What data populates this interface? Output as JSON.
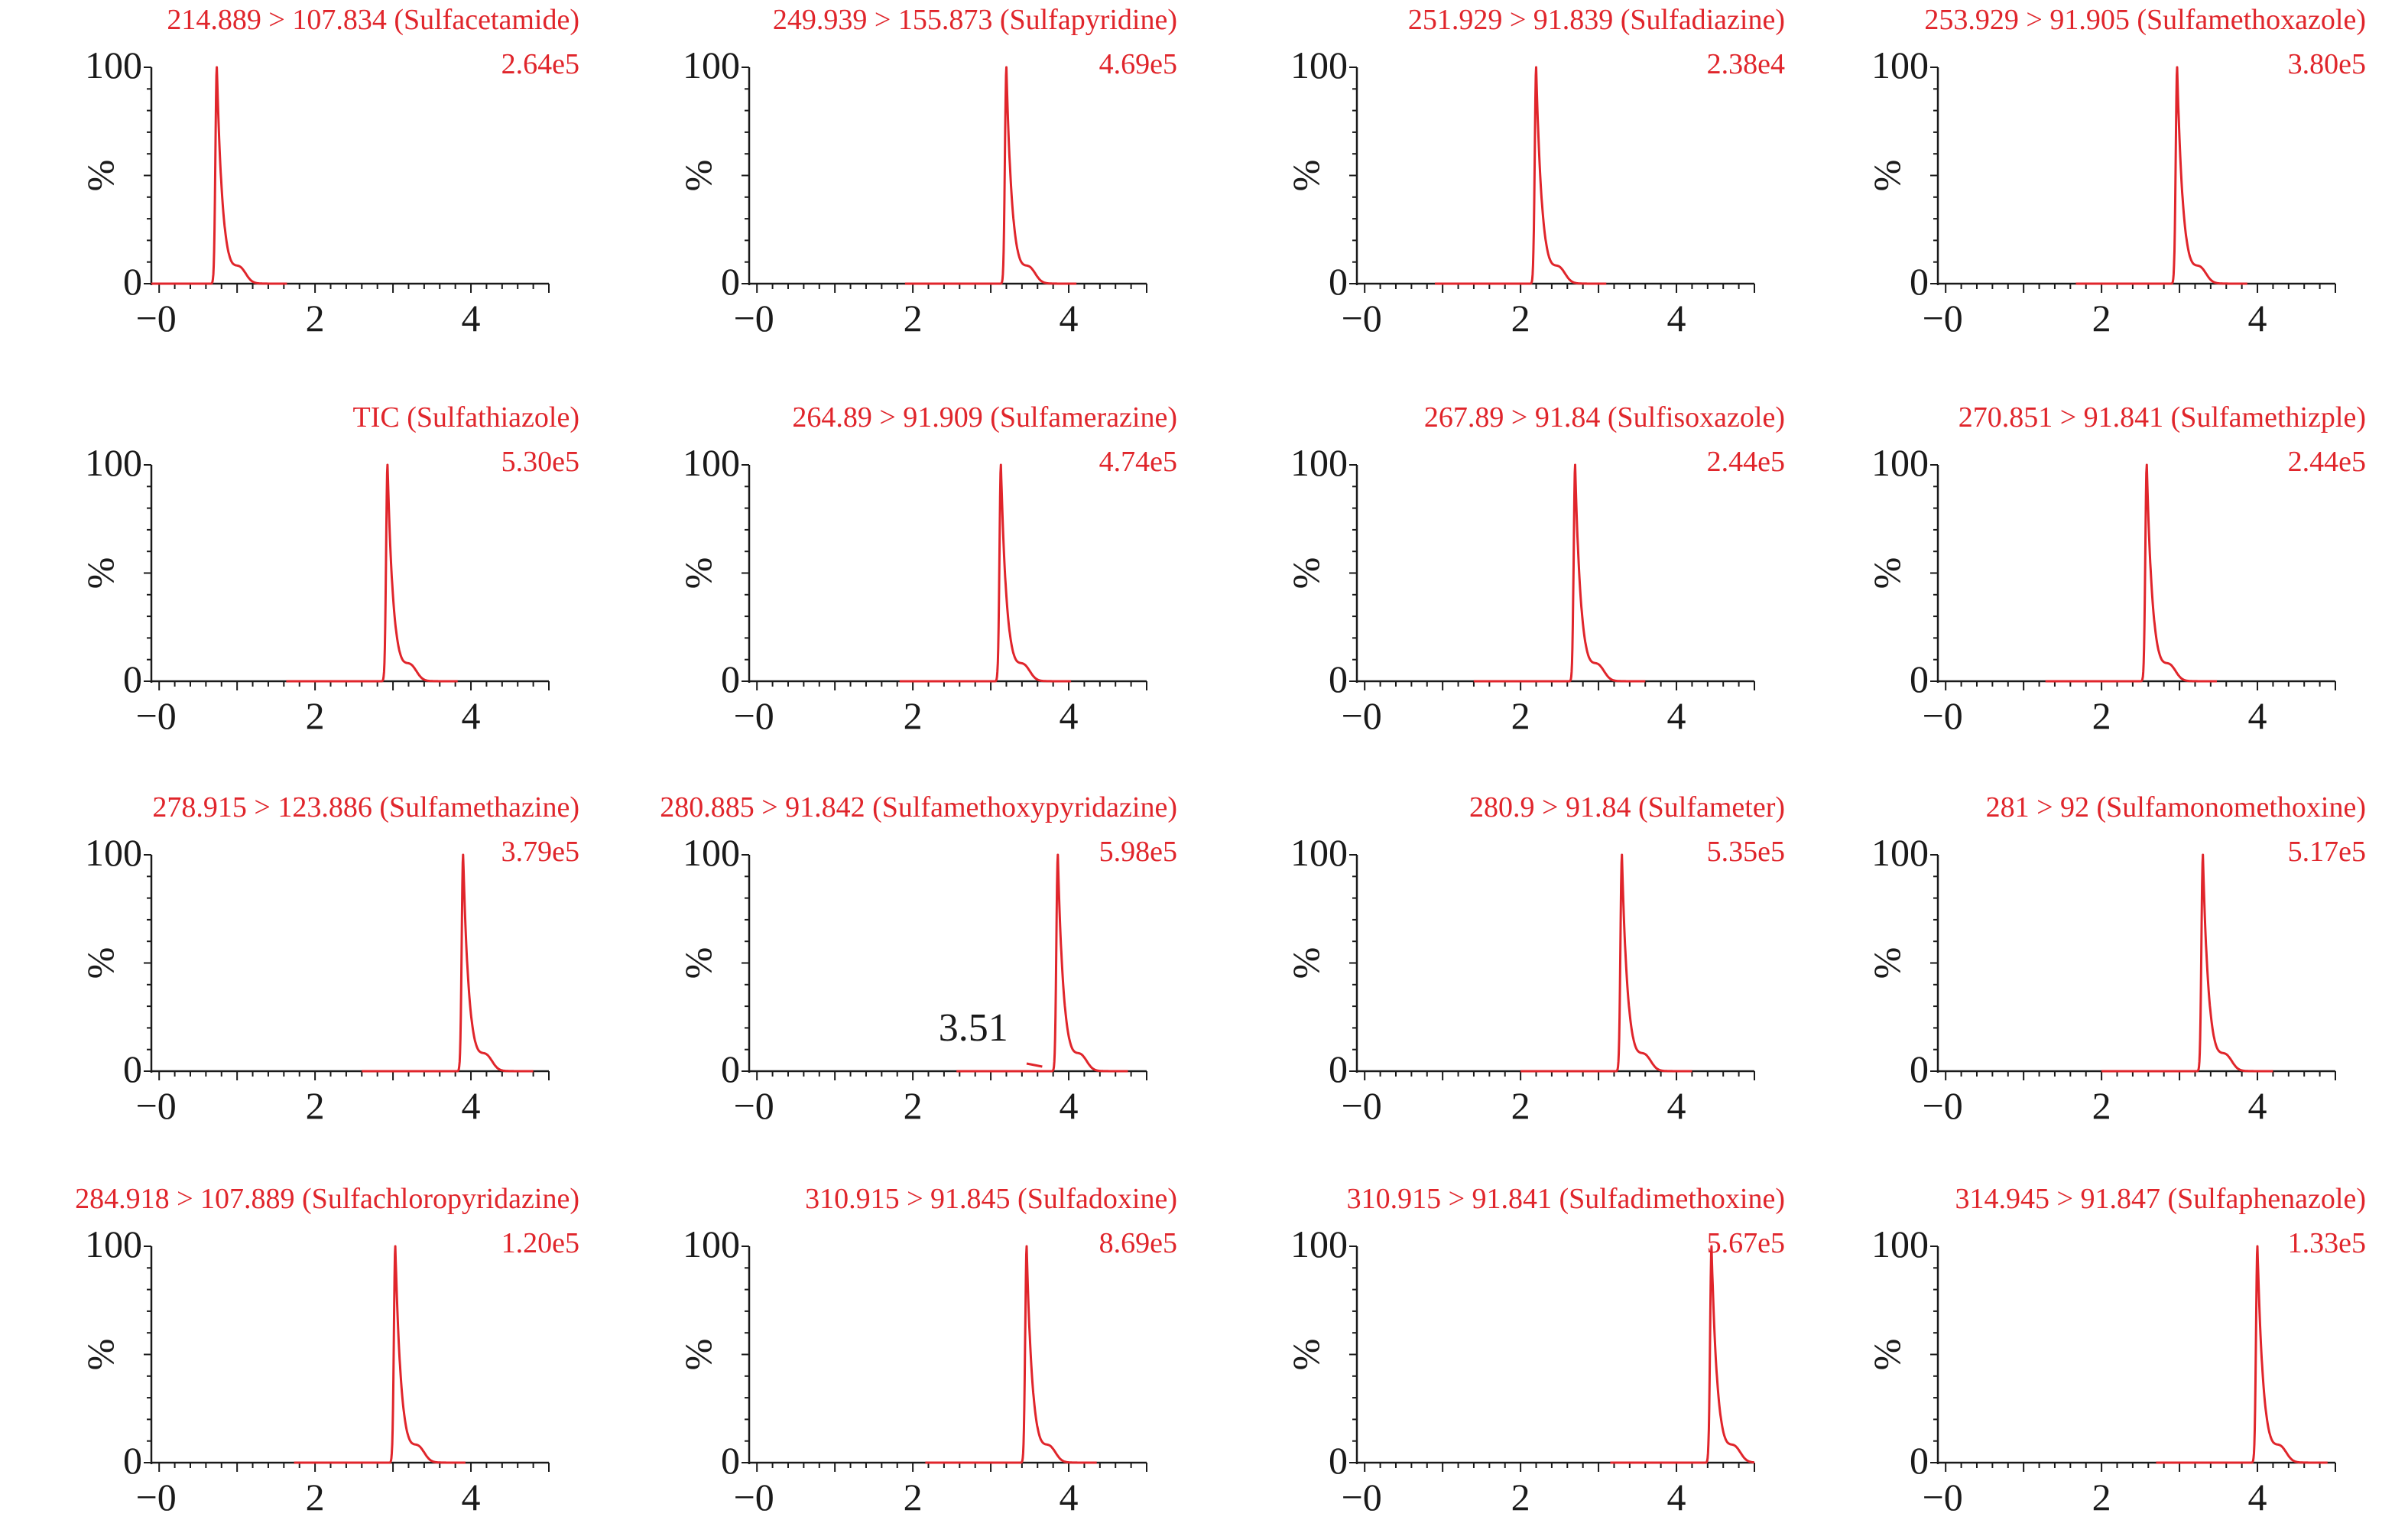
{
  "colors": {
    "trace": "#e0252b",
    "label": "#e0252b",
    "axis": "#1a1a1a"
  },
  "chart_data": [
    {
      "type": "line",
      "title": "214.889 > 107.834 (Sulfacetamide)",
      "intensity": "2.64e5",
      "peak": 0.74,
      "xlim": [
        -0.1,
        5.0
      ],
      "ylim": [
        0,
        100
      ],
      "yticks": [
        "100",
        "0"
      ],
      "xticks": [
        "−0",
        "2",
        "4"
      ],
      "ylabel": "%"
    },
    {
      "type": "line",
      "title": "249.939 > 155.873 (Sulfapyridine)",
      "intensity": "4.69e5",
      "peak": 3.2,
      "xlim": [
        -0.1,
        5.0
      ],
      "ylim": [
        0,
        100
      ],
      "yticks": [
        "100",
        "0"
      ],
      "xticks": [
        "−0",
        "2",
        "4"
      ],
      "ylabel": "%"
    },
    {
      "type": "line",
      "title": "251.929 > 91.839 (Sulfadiazine)",
      "intensity": "2.38e4",
      "peak": 2.2,
      "xlim": [
        -0.1,
        5.0
      ],
      "ylim": [
        0,
        100
      ],
      "yticks": [
        "100",
        "0"
      ],
      "xticks": [
        "−0",
        "2",
        "4"
      ],
      "ylabel": "%"
    },
    {
      "type": "line",
      "title": "253.929 > 91.905 (Sulfamethoxazole)",
      "intensity": "3.80e5",
      "peak": 2.97,
      "xlim": [
        -0.1,
        5.0
      ],
      "ylim": [
        0,
        100
      ],
      "yticks": [
        "100",
        "0"
      ],
      "xticks": [
        "−0",
        "2",
        "4"
      ],
      "ylabel": "%"
    },
    {
      "type": "line",
      "title": "TIC (Sulfathiazole)",
      "intensity": "5.30e5",
      "peak": 2.93,
      "xlim": [
        -0.1,
        5.0
      ],
      "ylim": [
        0,
        100
      ],
      "yticks": [
        "100",
        "0"
      ],
      "xticks": [
        "−0",
        "2",
        "4"
      ],
      "ylabel": "%"
    },
    {
      "type": "line",
      "title": "264.89 > 91.909 (Sulfamerazine)",
      "intensity": "4.74e5",
      "peak": 3.13,
      "xlim": [
        -0.1,
        5.0
      ],
      "ylim": [
        0,
        100
      ],
      "yticks": [
        "100",
        "0"
      ],
      "xticks": [
        "−0",
        "2",
        "4"
      ],
      "ylabel": "%"
    },
    {
      "type": "line",
      "title": "267.89 > 91.84 (Sulfisoxazole)",
      "intensity": "2.44e5",
      "peak": 2.7,
      "xlim": [
        -0.1,
        5.0
      ],
      "ylim": [
        0,
        100
      ],
      "yticks": [
        "100",
        "0"
      ],
      "xticks": [
        "−0",
        "2",
        "4"
      ],
      "ylabel": "%"
    },
    {
      "type": "line",
      "title": "270.851 > 91.841 (Sulfamethizple)",
      "intensity": "2.44e5",
      "peak": 2.58,
      "xlim": [
        -0.1,
        5.0
      ],
      "ylim": [
        0,
        100
      ],
      "yticks": [
        "100",
        "0"
      ],
      "xticks": [
        "−0",
        "2",
        "4"
      ],
      "ylabel": "%"
    },
    {
      "type": "line",
      "title": "278.915 > 123.886  (Sulfamethazine)",
      "intensity": "3.79e5",
      "peak": 3.9,
      "xlim": [
        -0.1,
        5.0
      ],
      "ylim": [
        0,
        100
      ],
      "yticks": [
        "100",
        "0"
      ],
      "xticks": [
        "−0",
        "2",
        "4"
      ],
      "ylabel": "%"
    },
    {
      "type": "line",
      "title": "280.885 > 91.842 (Sulfamethoxypyridazine)",
      "intensity": "5.98e5",
      "peak": 3.86,
      "annotation": "3.51",
      "xlim": [
        -0.1,
        5.0
      ],
      "ylim": [
        0,
        100
      ],
      "yticks": [
        "100",
        "0"
      ],
      "xticks": [
        "−0",
        "2",
        "4"
      ],
      "ylabel": "%"
    },
    {
      "type": "line",
      "title": "280.9 > 91.84 (Sulfameter)",
      "intensity": "5.35e5",
      "peak": 3.3,
      "xlim": [
        -0.1,
        5.0
      ],
      "ylim": [
        0,
        100
      ],
      "yticks": [
        "100",
        "0"
      ],
      "xticks": [
        "−0",
        "2",
        "4"
      ],
      "ylabel": "%"
    },
    {
      "type": "line",
      "title": "281 > 92 (Sulfamonomethoxine)",
      "intensity": "5.17e5",
      "peak": 3.3,
      "xlim": [
        -0.1,
        5.0
      ],
      "ylim": [
        0,
        100
      ],
      "yticks": [
        "100",
        "0"
      ],
      "xticks": [
        "−0",
        "2",
        "4"
      ],
      "ylabel": "%"
    },
    {
      "type": "line",
      "title": "284.918 > 107.889  (Sulfachloropyridazine)",
      "intensity": "1.20e5",
      "peak": 3.03,
      "xlim": [
        -0.1,
        5.0
      ],
      "ylim": [
        0,
        100
      ],
      "yticks": [
        "100",
        "0"
      ],
      "xticks": [
        "−0",
        "2",
        "4"
      ],
      "ylabel": "%"
    },
    {
      "type": "line",
      "title": "310.915 > 91.845 (Sulfadoxine)",
      "intensity": "8.69e5",
      "peak": 3.46,
      "xlim": [
        -0.1,
        5.0
      ],
      "ylim": [
        0,
        100
      ],
      "yticks": [
        "100",
        "0"
      ],
      "xticks": [
        "−0",
        "2",
        "4"
      ],
      "ylabel": "%"
    },
    {
      "type": "line",
      "title": "310.915 > 91.841 (Sulfadimethoxine)",
      "intensity": "5.67e5",
      "peak": 4.45,
      "xlim": [
        -0.1,
        5.0
      ],
      "ylim": [
        0,
        100
      ],
      "yticks": [
        "100",
        "0"
      ],
      "xticks": [
        "−0",
        "2",
        "4"
      ],
      "ylabel": "%"
    },
    {
      "type": "line",
      "title": "314.945 > 91.847 (Sulfaphenazole)",
      "intensity": "1.33e5",
      "peak": 4.0,
      "xlim": [
        -0.1,
        5.0
      ],
      "ylim": [
        0,
        100
      ],
      "yticks": [
        "100",
        "0"
      ],
      "xticks": [
        "−0",
        "2",
        "4"
      ],
      "ylabel": "%"
    }
  ]
}
